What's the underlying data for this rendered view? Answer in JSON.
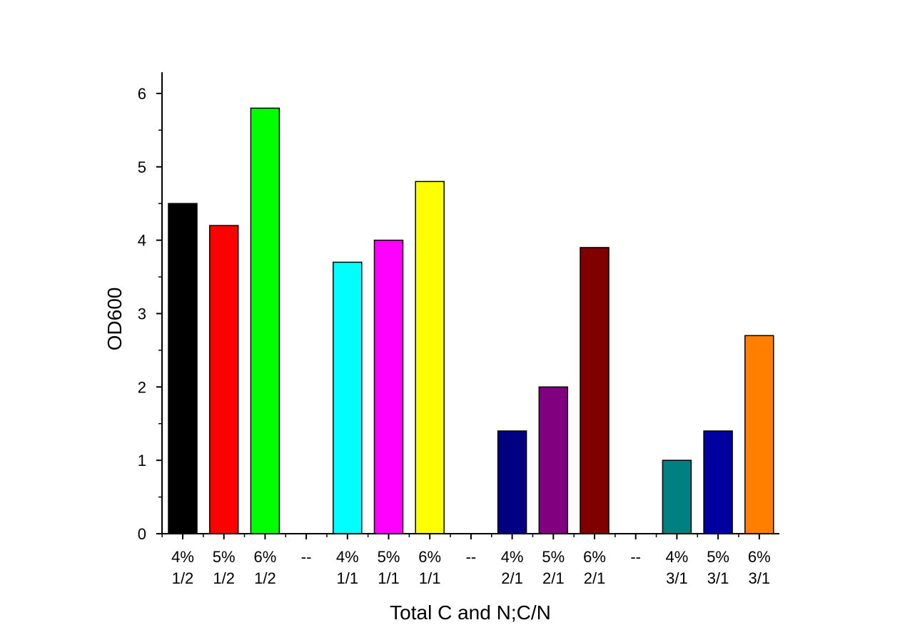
{
  "chart_data": {
    "type": "bar",
    "title": "",
    "xlabel": "Total C and N;C/N",
    "ylabel": "OD600",
    "ylim": [
      0,
      6.25
    ],
    "yticks": [
      0,
      1,
      2,
      3,
      4,
      5,
      6
    ],
    "grid": false,
    "categories": [
      {
        "line1": "4%",
        "line2": "1/2",
        "value": 4.5,
        "color": "#000000"
      },
      {
        "line1": "5%",
        "line2": "1/2",
        "value": 4.2,
        "color": "#ff0000"
      },
      {
        "line1": "6%",
        "line2": "1/2",
        "value": 5.8,
        "color": "#00ff00"
      },
      {
        "line1": "--",
        "line2": "",
        "value": null,
        "color": ""
      },
      {
        "line1": "4%",
        "line2": "1/1",
        "value": 3.7,
        "color": "#00ffff"
      },
      {
        "line1": "5%",
        "line2": "1/1",
        "value": 4.0,
        "color": "#ff00ff"
      },
      {
        "line1": "6%",
        "line2": "1/1",
        "value": 4.8,
        "color": "#ffff00"
      },
      {
        "line1": "--",
        "line2": "",
        "value": null,
        "color": ""
      },
      {
        "line1": "4%",
        "line2": "2/1",
        "value": 1.4,
        "color": "#000080"
      },
      {
        "line1": "5%",
        "line2": "2/1",
        "value": 2.0,
        "color": "#800080"
      },
      {
        "line1": "6%",
        "line2": "2/1",
        "value": 3.9,
        "color": "#800000"
      },
      {
        "line1": "--",
        "line2": "",
        "value": null,
        "color": ""
      },
      {
        "line1": "4%",
        "line2": "3/1",
        "value": 1.0,
        "color": "#008080"
      },
      {
        "line1": "5%",
        "line2": "3/1",
        "value": 1.4,
        "color": "#0000a0"
      },
      {
        "line1": "6%",
        "line2": "3/1",
        "value": 2.7,
        "color": "#ff8000"
      }
    ]
  }
}
